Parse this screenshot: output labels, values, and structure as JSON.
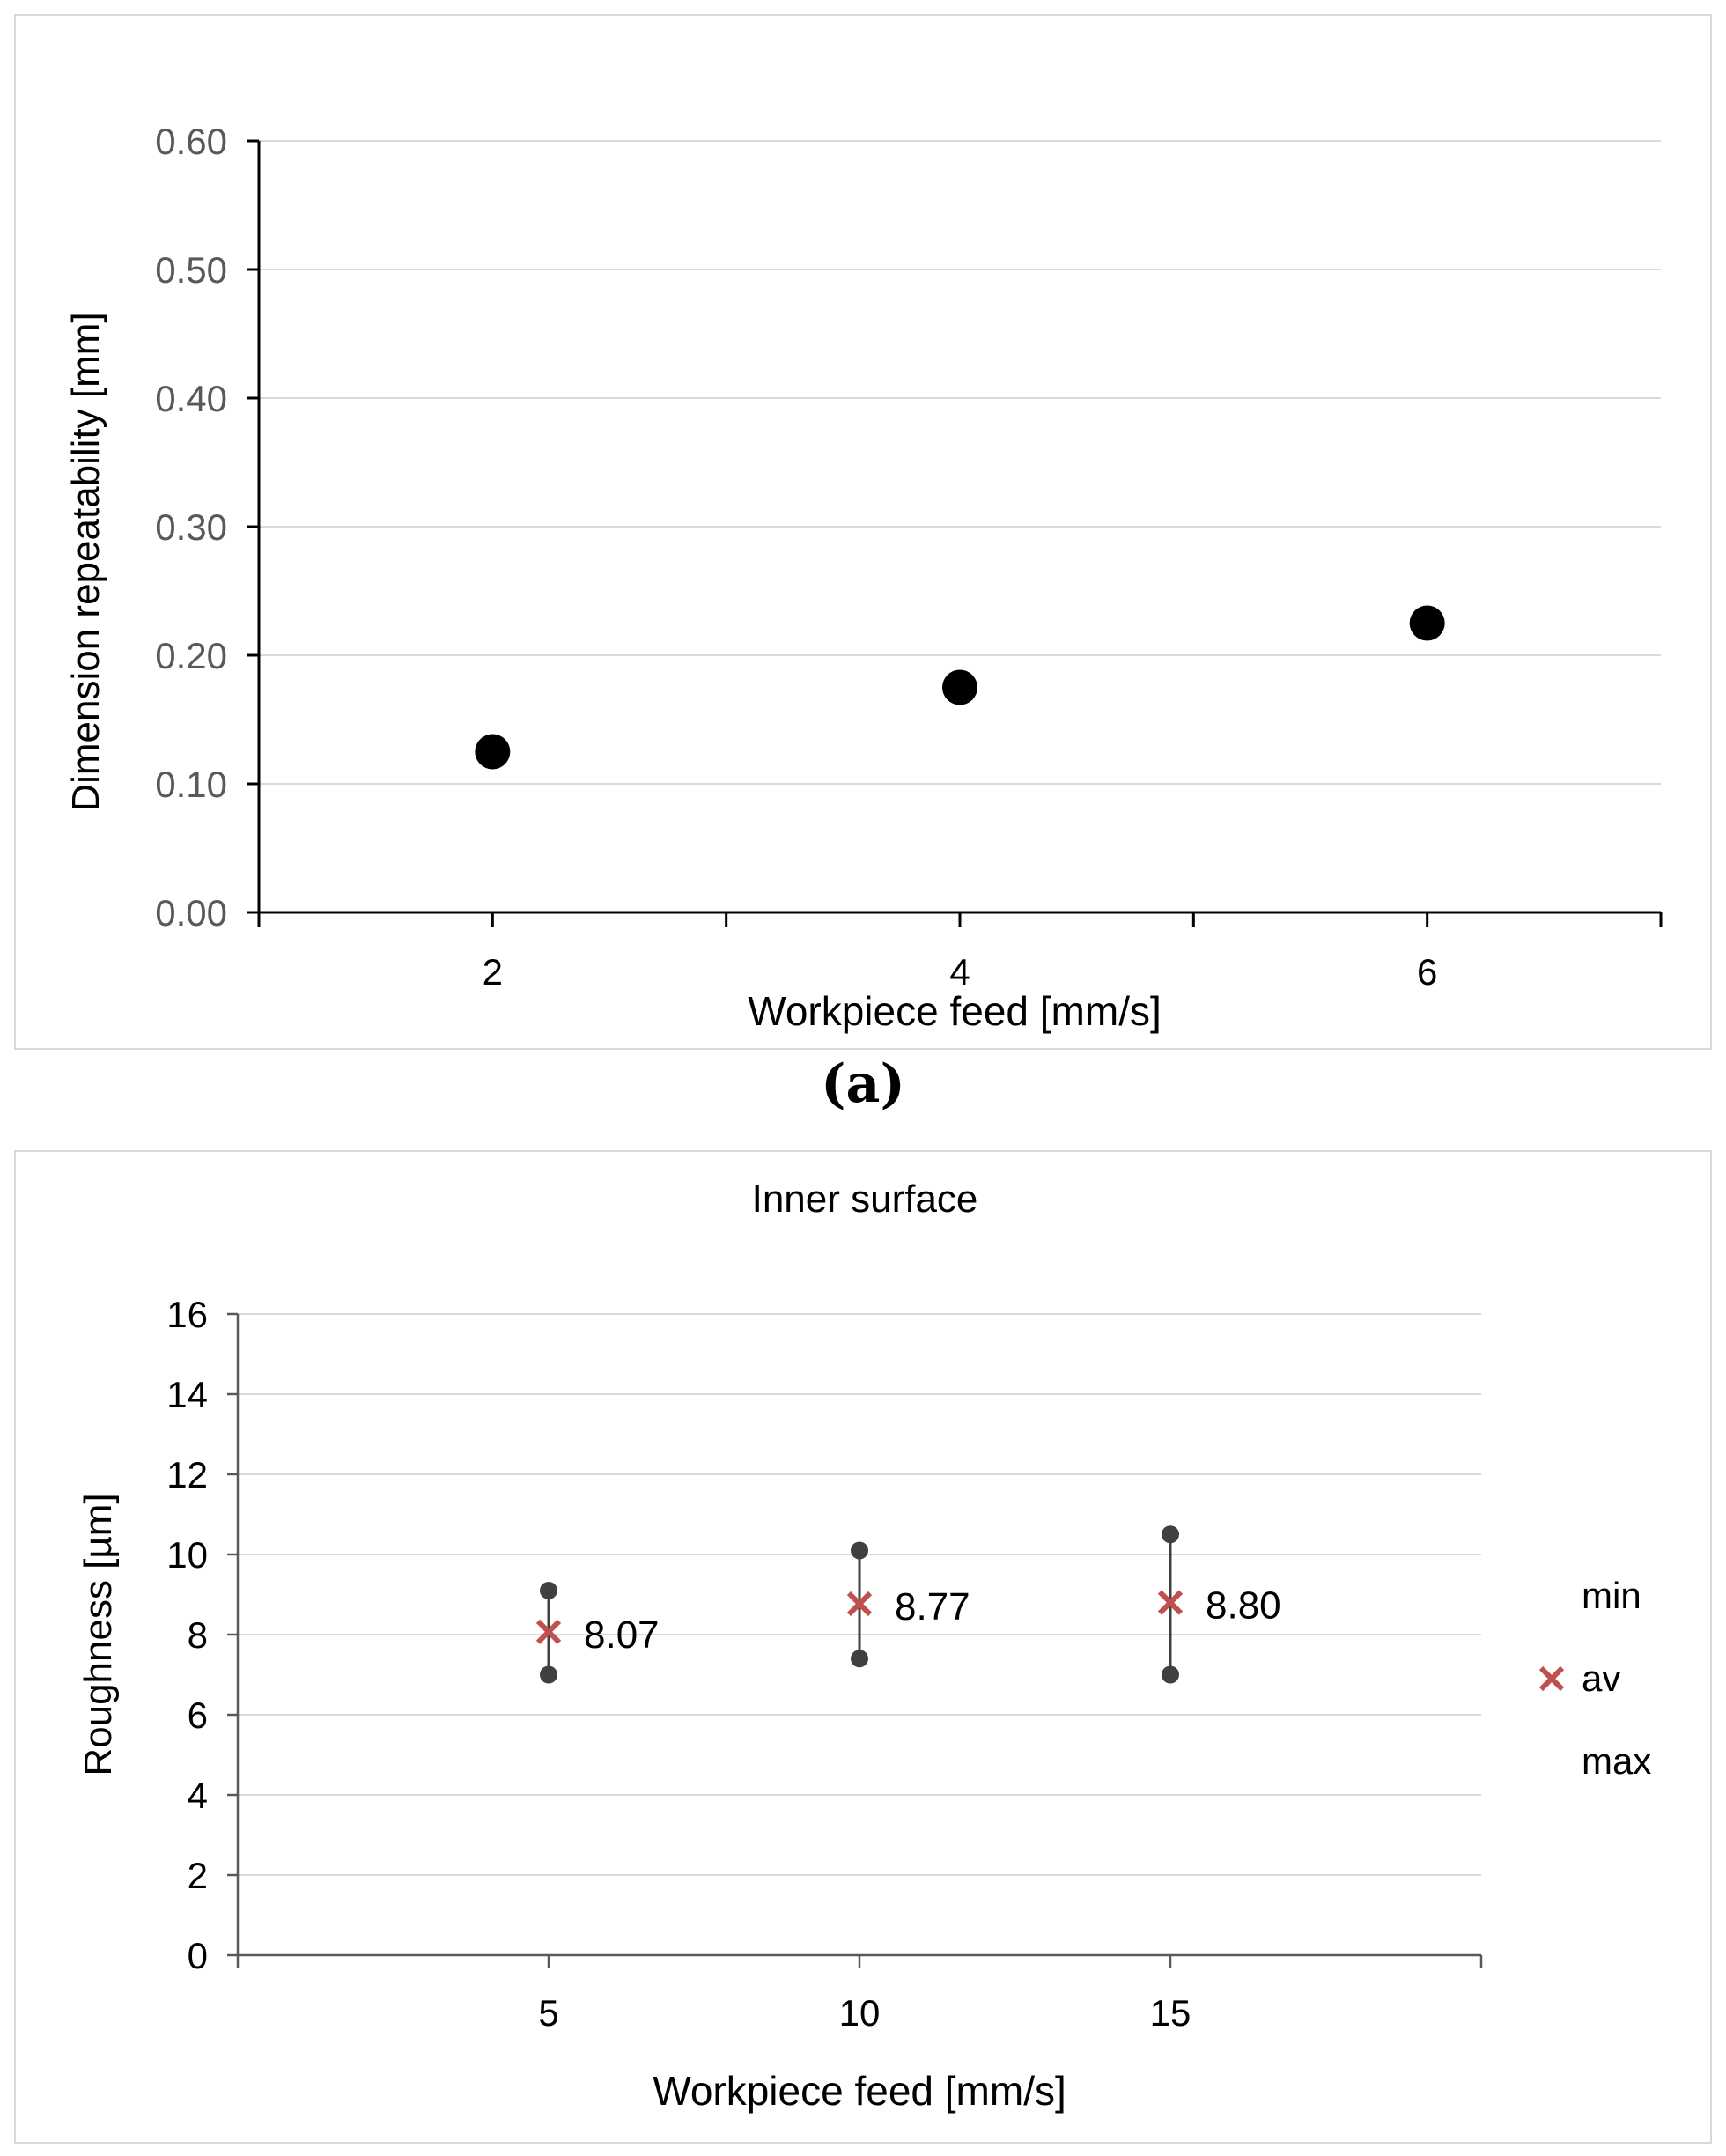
{
  "subfigure_label": "(a)",
  "chart_data": [
    {
      "type": "scatter",
      "title": "",
      "xlabel": "Workpiece feed [mm/s]",
      "ylabel": "Dimension repeatability [mm]",
      "ylim": [
        0,
        0.6
      ],
      "xlim": [
        1,
        7
      ],
      "y_ticks": [
        "0.00",
        "0.10",
        "0.20",
        "0.30",
        "0.40",
        "0.50",
        "0.60"
      ],
      "x_ticks": [
        "2",
        "4",
        "6"
      ],
      "grid": true,
      "series": [
        {
          "x": [
            2,
            4,
            6
          ],
          "values": [
            0.125,
            0.175,
            0.225
          ]
        }
      ],
      "colors": {
        "marker": "#000000",
        "grid": "#d9d9d9",
        "axis": "#000000",
        "tick_text": "#595959"
      }
    },
    {
      "type": "scatter",
      "title": "Inner surface",
      "xlabel": "Workpiece feed [mm/s]",
      "ylabel": "Roughness [µm]",
      "ylim": [
        0,
        16
      ],
      "xlim": [
        0,
        20
      ],
      "y_ticks": [
        "0",
        "2",
        "4",
        "6",
        "8",
        "10",
        "12",
        "14",
        "16"
      ],
      "x_ticks": [
        "5",
        "10",
        "15"
      ],
      "grid": true,
      "legend_position": "right",
      "legend": [
        "min",
        "av",
        "max"
      ],
      "categories": [
        "5",
        "10",
        "15"
      ],
      "series": [
        {
          "name": "min",
          "values": [
            7.0,
            7.4,
            7.0
          ]
        },
        {
          "name": "av",
          "values": [
            8.07,
            8.77,
            8.8
          ]
        },
        {
          "name": "max",
          "values": [
            9.1,
            10.1,
            10.5
          ]
        }
      ],
      "data_labels": [
        "8.07",
        "8.77",
        "8.80"
      ],
      "colors": {
        "minmax": "#404040",
        "av": "#c0504d",
        "grid": "#d9d9d9",
        "axis": "#595959",
        "tick_text": "#000000"
      }
    }
  ]
}
